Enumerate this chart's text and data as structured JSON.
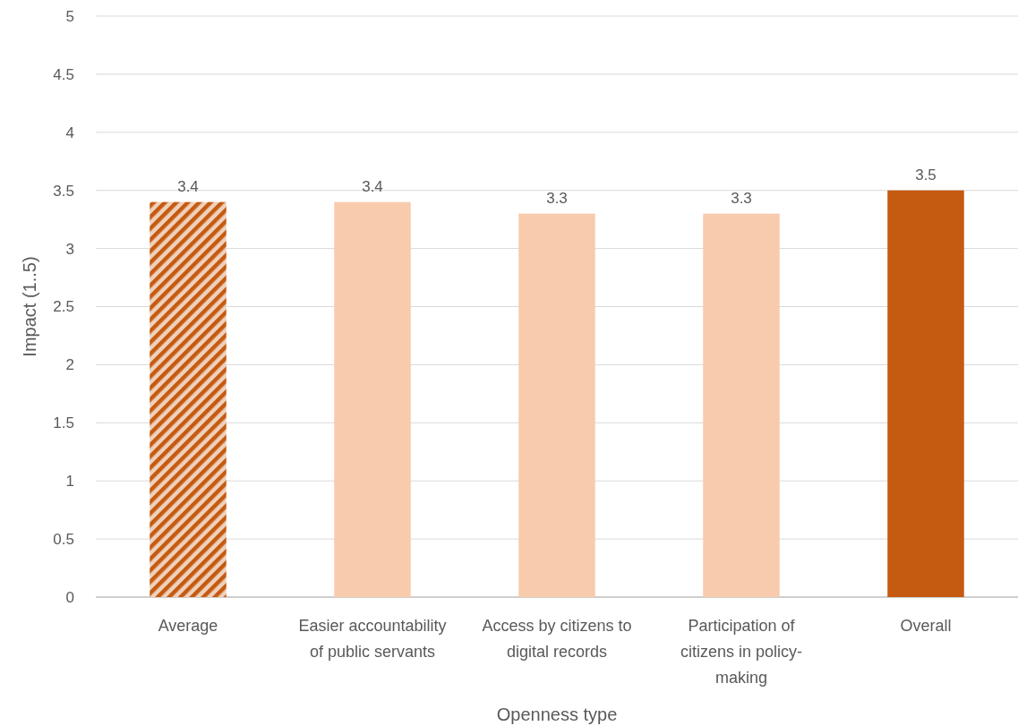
{
  "chart_data": {
    "type": "bar",
    "xlabel": "Openness type",
    "ylabel": "Impact (1..5)",
    "categories": [
      "Average",
      "Easier accountability of public servants",
      "Access by citizens to digital records",
      "Participation of citizens in policy-making",
      "Overall"
    ],
    "values": [
      3.4,
      3.4,
      3.3,
      3.3,
      3.5
    ],
    "colors": [
      "#c55a11",
      "#f8cbad",
      "#f8cbad",
      "#f8cbad",
      "#c55a11"
    ],
    "ylim": [
      0,
      5
    ],
    "yticks": [
      0,
      0.5,
      1,
      1.5,
      2,
      2.5,
      3,
      3.5,
      4,
      4.5,
      5
    ],
    "grid": "y",
    "data_labels": true
  }
}
